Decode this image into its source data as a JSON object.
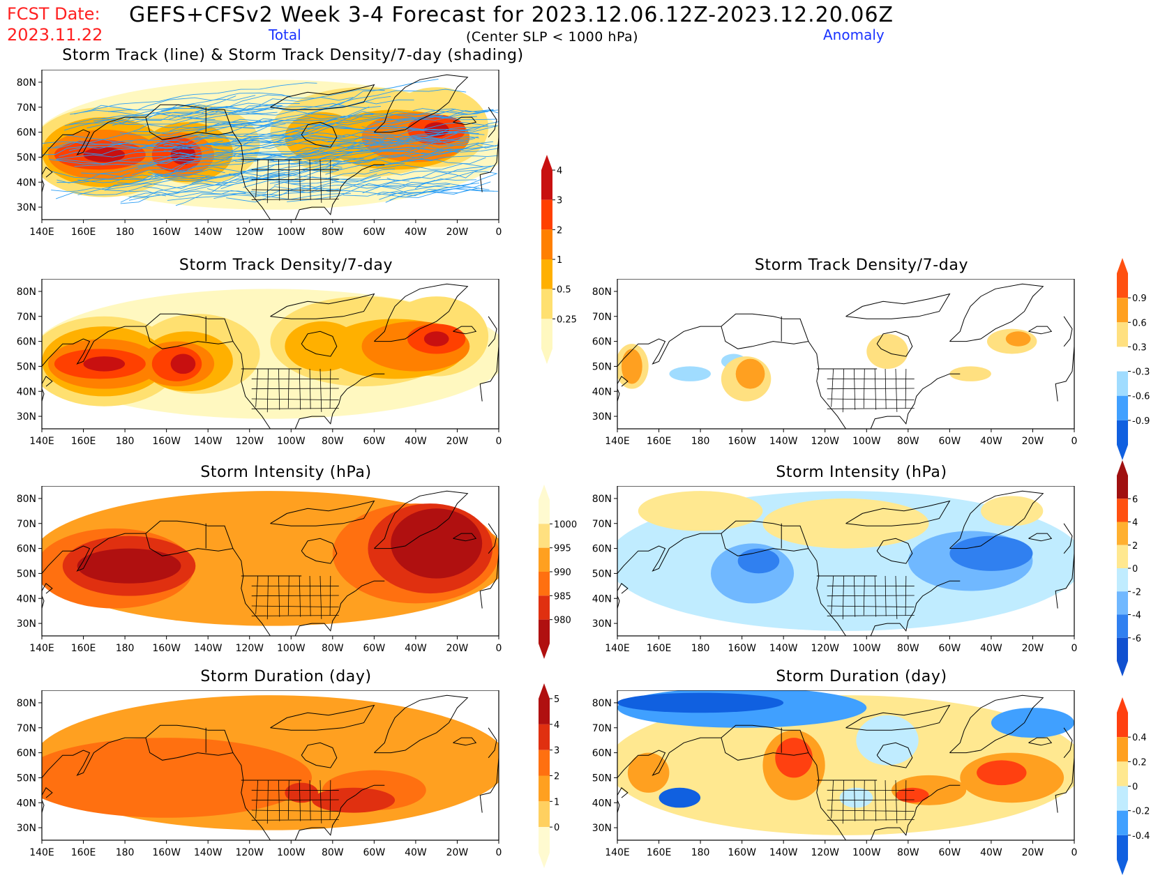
{
  "header": {
    "fcst_label": "FCST Date:",
    "fcst_date": "2023.11.22",
    "main_title": "GEFS+CFSv2 Week 3-4 Forecast for 2023.12.06.12Z-2023.12.20.06Z",
    "total_label": "Total",
    "criterion": "(Center SLP < 1000 hPa)",
    "anomaly_label": "Anomaly"
  },
  "axes": {
    "lat_ticks": [
      "80N",
      "70N",
      "60N",
      "50N",
      "40N",
      "30N"
    ],
    "lon_ticks": [
      "140E",
      "160E",
      "180",
      "160W",
      "140W",
      "120W",
      "100W",
      "80W",
      "60W",
      "40W",
      "20W",
      "0"
    ]
  },
  "panels": {
    "track": {
      "title": "Storm Track (line) & Storm Track Density/7-day (shading)"
    },
    "density_total": {
      "title": "Storm Track Density/7-day"
    },
    "density_anom": {
      "title": "Storm Track Density/7-day"
    },
    "intensity_total": {
      "title": "Storm Intensity (hPa)"
    },
    "intensity_anom": {
      "title": "Storm Intensity (hPa)"
    },
    "duration_total": {
      "title": "Storm Duration (day)"
    },
    "duration_anom": {
      "title": "Storm Duration (day)"
    }
  },
  "colorbars": {
    "density": {
      "labels": [
        "0.25",
        "0.5",
        "1",
        "2",
        "3",
        "4"
      ],
      "colors": [
        "#fff8c0",
        "#ffe070",
        "#ffb000",
        "#ff8000",
        "#ff4000",
        "#c81010"
      ]
    },
    "density_anom": {
      "labels": [
        "-0.9",
        "-0.6",
        "-0.3",
        "0.3",
        "0.6",
        "0.9"
      ],
      "colors": [
        "#1060e0",
        "#40a0ff",
        "#a0dcff",
        "#ffffff",
        "#ffe080",
        "#ffa020",
        "#ff5010"
      ]
    },
    "intensity": {
      "labels": [
        "980",
        "985",
        "990",
        "995",
        "1000"
      ],
      "colors": [
        "#b01010",
        "#e03010",
        "#ff7010",
        "#ffa020",
        "#ffe080",
        "#fffad0"
      ]
    },
    "intensity_anom": {
      "labels": [
        "-6",
        "-4",
        "-2",
        "0",
        "2",
        "4",
        "6"
      ],
      "colors": [
        "#1050d0",
        "#3080f0",
        "#70b8ff",
        "#c0ecff",
        "#ffe890",
        "#ffb030",
        "#ff5010",
        "#a01010"
      ]
    },
    "duration": {
      "labels": [
        "0",
        "1",
        "2",
        "3",
        "4",
        "5"
      ],
      "colors": [
        "#fffad0",
        "#ffd060",
        "#ffa020",
        "#ff7010",
        "#e03010",
        "#b01010"
      ]
    },
    "duration_anom": {
      "labels": [
        "-0.4",
        "-0.2",
        "0",
        "0.2",
        "0.4"
      ],
      "colors": [
        "#1060e0",
        "#40a0ff",
        "#c0ecff",
        "#ffe890",
        "#ffa020",
        "#ff4010"
      ]
    }
  },
  "colors": {
    "track_line": "#2a9df4",
    "coast": "#000000"
  }
}
